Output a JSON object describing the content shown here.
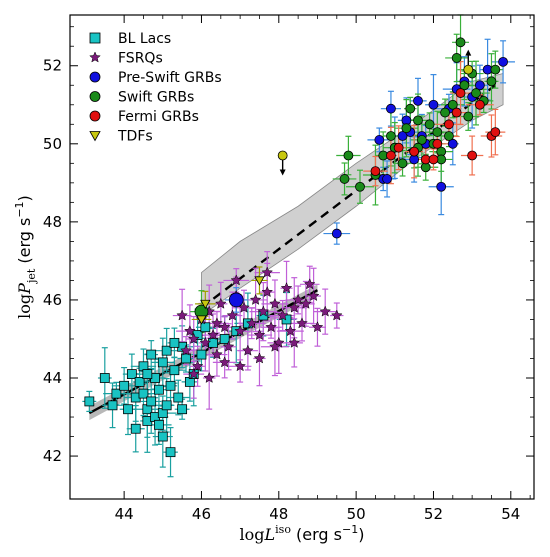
{
  "chart_data": {
    "type": "scatter",
    "xlabel": "logL^iso (erg s^-1)",
    "ylabel": "logP_jet (erg s^-1)",
    "xlim": [
      42.6,
      54.6
    ],
    "ylim": [
      40.9,
      53.3
    ],
    "xticks": [
      44,
      46,
      48,
      50,
      52,
      54
    ],
    "yticks": [
      42,
      44,
      46,
      48,
      50,
      52
    ],
    "grid": false,
    "legend_placement": "top-left",
    "series": [
      {
        "name": "BL Lacs",
        "marker": "square",
        "color": "#19c3c3",
        "points": [
          [
            43.1,
            43.4
          ],
          [
            43.5,
            44.0
          ],
          [
            43.8,
            43.6
          ],
          [
            43.7,
            43.3
          ],
          [
            44.0,
            43.8
          ],
          [
            44.2,
            44.1
          ],
          [
            44.3,
            43.5
          ],
          [
            44.4,
            43.9
          ],
          [
            44.5,
            44.3
          ],
          [
            44.5,
            43.6
          ],
          [
            44.6,
            42.9
          ],
          [
            44.6,
            43.2
          ],
          [
            44.7,
            44.6
          ],
          [
            44.7,
            43.4
          ],
          [
            44.8,
            43.0
          ],
          [
            44.8,
            44.0
          ],
          [
            44.9,
            43.7
          ],
          [
            44.9,
            42.8
          ],
          [
            45.0,
            44.4
          ],
          [
            45.0,
            43.1
          ],
          [
            45.1,
            43.3
          ],
          [
            45.1,
            44.7
          ],
          [
            45.2,
            42.1
          ],
          [
            45.2,
            43.8
          ],
          [
            45.3,
            44.2
          ],
          [
            45.4,
            43.5
          ],
          [
            45.5,
            44.8
          ],
          [
            45.5,
            43.2
          ],
          [
            45.6,
            44.5
          ],
          [
            45.7,
            43.9
          ],
          [
            45.8,
            44.1
          ],
          [
            45.9,
            45.1
          ],
          [
            46.0,
            44.6
          ],
          [
            46.1,
            45.3
          ],
          [
            46.3,
            44.9
          ],
          [
            46.6,
            45.0
          ],
          [
            46.9,
            45.2
          ],
          [
            47.2,
            45.4
          ],
          [
            47.6,
            45.6
          ],
          [
            48.2,
            45.5
          ],
          [
            44.3,
            42.7
          ],
          [
            45.0,
            42.5
          ],
          [
            44.6,
            44.1
          ],
          [
            45.3,
            44.9
          ],
          [
            44.1,
            43.2
          ]
        ]
      },
      {
        "name": "FSRQs",
        "marker": "star",
        "color": "#7a1a7a",
        "points": [
          [
            45.6,
            44.7
          ],
          [
            45.7,
            45.2
          ],
          [
            45.8,
            45.0
          ],
          [
            45.9,
            44.3
          ],
          [
            46.0,
            45.5
          ],
          [
            46.1,
            44.9
          ],
          [
            46.2,
            45.7
          ],
          [
            46.3,
            45.1
          ],
          [
            46.4,
            44.6
          ],
          [
            46.5,
            45.9
          ],
          [
            46.6,
            45.3
          ],
          [
            46.7,
            44.8
          ],
          [
            46.8,
            45.6
          ],
          [
            46.9,
            46.1
          ],
          [
            47.0,
            45.2
          ],
          [
            47.1,
            45.8
          ],
          [
            47.2,
            44.7
          ],
          [
            47.3,
            45.4
          ],
          [
            47.4,
            46.0
          ],
          [
            47.5,
            45.1
          ],
          [
            47.6,
            45.7
          ],
          [
            47.7,
            46.2
          ],
          [
            47.8,
            45.3
          ],
          [
            47.9,
            45.9
          ],
          [
            48.0,
            44.9
          ],
          [
            48.1,
            45.6
          ],
          [
            48.2,
            46.3
          ],
          [
            48.3,
            45.2
          ],
          [
            48.4,
            45.8
          ],
          [
            48.5,
            46.0
          ],
          [
            48.6,
            45.4
          ],
          [
            48.7,
            45.9
          ],
          [
            48.8,
            46.4
          ],
          [
            49.0,
            45.3
          ],
          [
            49.2,
            45.7
          ],
          [
            49.5,
            45.6
          ],
          [
            45.8,
            44.1
          ],
          [
            46.2,
            44.0
          ],
          [
            46.6,
            44.4
          ],
          [
            47.0,
            44.3
          ],
          [
            47.5,
            44.5
          ],
          [
            47.9,
            44.8
          ],
          [
            48.4,
            44.9
          ],
          [
            46.9,
            46.5
          ],
          [
            47.7,
            46.7
          ],
          [
            48.9,
            46.1
          ],
          [
            45.5,
            45.6
          ],
          [
            46.4,
            45.4
          ]
        ]
      },
      {
        "name": "Pre-Swift GRBs",
        "marker": "circle",
        "color": "#1010e0",
        "points": [
          [
            49.5,
            47.7
          ],
          [
            50.7,
            49.1
          ],
          [
            50.8,
            49.1
          ],
          [
            50.9,
            50.9
          ],
          [
            51.0,
            49.9
          ],
          [
            51.2,
            50.2
          ],
          [
            51.3,
            50.6
          ],
          [
            51.4,
            50.3
          ],
          [
            51.5,
            49.6
          ],
          [
            51.6,
            51.1
          ],
          [
            51.8,
            50.0
          ],
          [
            52.0,
            51.0
          ],
          [
            52.2,
            48.9
          ],
          [
            52.4,
            50.9
          ],
          [
            52.6,
            51.4
          ],
          [
            52.8,
            51.6
          ],
          [
            53.0,
            51.2
          ],
          [
            53.2,
            51.5
          ],
          [
            53.4,
            51.9
          ],
          [
            53.8,
            52.1
          ],
          [
            51.7,
            50.2
          ],
          [
            52.5,
            50.0
          ],
          [
            46.9,
            46.0
          ],
          [
            50.6,
            50.1
          ]
        ]
      },
      {
        "name": "Swift GRBs",
        "marker": "circle",
        "color": "#1a8a1a",
        "points": [
          [
            49.7,
            49.1
          ],
          [
            49.8,
            49.7
          ],
          [
            50.1,
            48.9
          ],
          [
            50.5,
            49.2
          ],
          [
            50.7,
            49.7
          ],
          [
            50.9,
            50.2
          ],
          [
            51.0,
            49.9
          ],
          [
            51.2,
            49.5
          ],
          [
            51.3,
            50.4
          ],
          [
            51.4,
            50.9
          ],
          [
            51.5,
            49.8
          ],
          [
            51.6,
            50.6
          ],
          [
            51.7,
            50.1
          ],
          [
            51.8,
            49.4
          ],
          [
            51.9,
            50.5
          ],
          [
            52.0,
            50.0
          ],
          [
            52.1,
            50.3
          ],
          [
            52.2,
            49.8
          ],
          [
            52.3,
            50.8
          ],
          [
            52.4,
            50.2
          ],
          [
            52.5,
            51.0
          ],
          [
            52.6,
            52.2
          ],
          [
            52.7,
            52.6
          ],
          [
            52.8,
            51.5
          ],
          [
            52.9,
            50.7
          ],
          [
            53.0,
            51.8
          ],
          [
            53.1,
            51.3
          ],
          [
            53.3,
            51.1
          ],
          [
            53.5,
            51.6
          ],
          [
            53.6,
            51.9
          ],
          [
            52.2,
            49.6
          ],
          [
            51.6,
            49.9
          ],
          [
            46.0,
            45.7
          ]
        ]
      },
      {
        "name": "Fermi GRBs",
        "marker": "circle",
        "color": "#e01010",
        "points": [
          [
            50.5,
            49.3
          ],
          [
            50.9,
            49.7
          ],
          [
            51.1,
            49.9
          ],
          [
            51.8,
            49.6
          ],
          [
            52.1,
            50.0
          ],
          [
            52.4,
            50.5
          ],
          [
            52.7,
            51.3
          ],
          [
            53.0,
            49.7
          ],
          [
            53.2,
            51.0
          ],
          [
            53.5,
            50.2
          ],
          [
            53.6,
            50.3
          ],
          [
            51.5,
            49.8
          ],
          [
            52.6,
            50.8
          ],
          [
            52.0,
            49.6
          ]
        ]
      },
      {
        "name": "TDFs",
        "marker": "triangle-down",
        "color": "#c8c810",
        "points": [
          [
            46.0,
            45.5
          ],
          [
            47.5,
            46.5
          ],
          [
            46.1,
            45.9
          ]
        ]
      }
    ],
    "extra_markers": [
      {
        "series": "TDFs",
        "marker": "circle",
        "points": [
          [
            48.1,
            49.7
          ],
          [
            52.9,
            51.9
          ]
        ]
      }
    ],
    "fits": [
      {
        "style": "solid",
        "color": "#000000",
        "x": [
          43.1,
          49.0
        ],
        "y": [
          43.1,
          46.25
        ],
        "band_color": "#b0b0b0"
      },
      {
        "style": "dashed",
        "color": "#000000",
        "x": [
          46.0,
          53.6
        ],
        "y": [
          45.8,
          51.5
        ],
        "band_color": "#b4b4b4"
      }
    ],
    "confidence_band_upper": [
      [
        46.0,
        46.7
      ],
      [
        47.0,
        47.5
      ],
      [
        48.5,
        48.4
      ],
      [
        50.0,
        49.5
      ],
      [
        51.5,
        50.5
      ],
      [
        53.0,
        51.6
      ],
      [
        53.8,
        51.8
      ]
    ],
    "confidence_band_lower": [
      [
        53.8,
        51.0
      ],
      [
        53.0,
        50.6
      ],
      [
        51.5,
        49.6
      ],
      [
        50.0,
        48.4
      ],
      [
        48.5,
        47.3
      ],
      [
        47.0,
        46.3
      ],
      [
        46.0,
        45.6
      ]
    ]
  }
}
